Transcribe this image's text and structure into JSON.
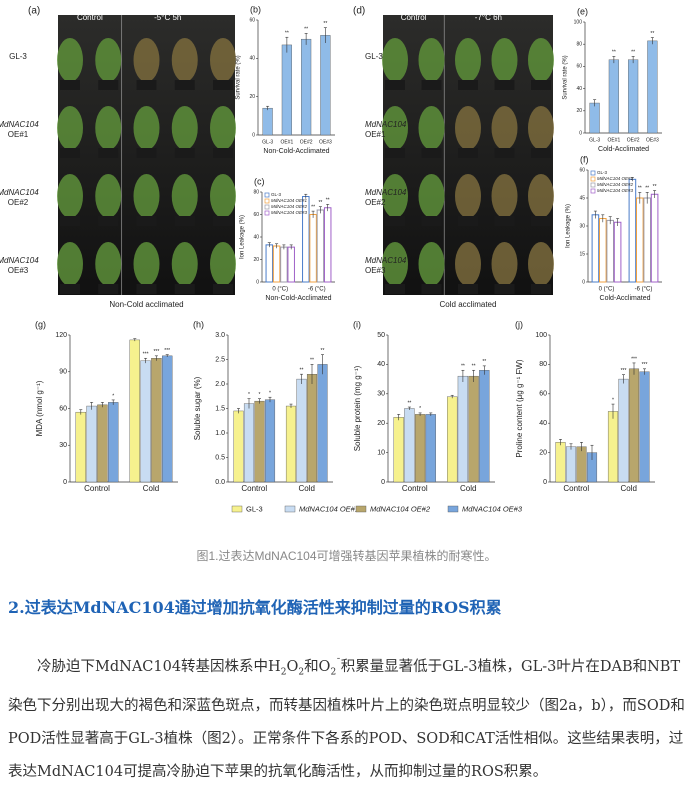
{
  "figure": {
    "photos": [
      {
        "letter": "(a)",
        "header": [
          "Control",
          "-5°C  5h"
        ],
        "rows": [
          [
            "GL-3"
          ],
          [
            "MdNAC104",
            "OE#1"
          ],
          [
            "MdNAC104",
            "OE#2"
          ],
          [
            "MdNAC104",
            "OE#3"
          ]
        ],
        "caption": "Non-Cold acclimated"
      },
      {
        "letter": "(d)",
        "header": [
          "Control",
          "-7°C  6h"
        ],
        "rows": [
          [
            "GL-3"
          ],
          [
            "MdNAC104",
            "OE#1"
          ],
          [
            "MdNAC104",
            "OE#2"
          ],
          [
            "MdNAC104",
            "OE#3"
          ]
        ],
        "caption": "Cold acclimated"
      }
    ],
    "caption": "图1.过表达MdNAC104可增强转基因苹果植株的耐寒性。"
  },
  "chart_data": [
    {
      "type": "bar",
      "letter": "(b)",
      "ylabel": "Survival rate (%)",
      "xlabel": "Non-Cold-Acclimated",
      "categories": [
        "GL-3",
        "OE#1",
        "OE#2",
        "OE#3"
      ],
      "values": [
        14,
        47,
        50,
        52
      ],
      "errors": [
        1,
        4,
        3,
        4
      ],
      "sig": [
        null,
        "**",
        "**",
        "**"
      ],
      "color": "#8fbbe8",
      "ylim": [
        0,
        60
      ],
      "yticks": [
        0,
        20,
        40,
        60
      ]
    },
    {
      "type": "bar",
      "letter": "(c)",
      "ylabel": "Ion Leakage (%)",
      "xlabel": "Non-Cold-Acclimated",
      "categories": [
        "0 (°C)",
        "-6 (°C)"
      ],
      "outline": true,
      "legend": true,
      "ylim": [
        0,
        80
      ],
      "yticks": [
        0,
        20,
        40,
        60,
        80
      ],
      "series": [
        {
          "name": "GL-3",
          "color": "#4a7cc9",
          "values": [
            33,
            76
          ],
          "errors": [
            2,
            2
          ],
          "sig": [
            null,
            null
          ]
        },
        {
          "name": "MdNAC104 OE#1",
          "color": "#f0a040",
          "values": [
            32,
            60
          ],
          "errors": [
            2,
            3
          ],
          "sig": [
            null,
            "**"
          ]
        },
        {
          "name": "MdNAC104 OE#2",
          "color": "#9a9aa8",
          "values": [
            31,
            64
          ],
          "errors": [
            2,
            3
          ],
          "sig": [
            null,
            "**"
          ]
        },
        {
          "name": "MdNAC104 OE#3",
          "color": "#a060c8",
          "values": [
            31,
            66
          ],
          "errors": [
            2,
            3
          ],
          "sig": [
            null,
            "**"
          ]
        }
      ]
    },
    {
      "type": "bar",
      "letter": "(e)",
      "ylabel": "Survival rate (%)",
      "xlabel": "Cold-Acclimated",
      "categories": [
        "GL-3",
        "OE#1",
        "OE#2",
        "OE#3"
      ],
      "values": [
        27,
        66,
        66,
        83
      ],
      "errors": [
        3,
        3,
        3,
        3
      ],
      "sig": [
        null,
        "**",
        "**",
        "**"
      ],
      "color": "#8fbbe8",
      "ylim": [
        0,
        100
      ],
      "yticks": [
        0,
        20,
        40,
        60,
        80,
        100
      ]
    },
    {
      "type": "bar",
      "letter": "(f)",
      "ylabel": "Ion Leakage (%)",
      "xlabel": "Cold-Acclimated",
      "categories": [
        "0 (°C)",
        "-6 (°C)"
      ],
      "outline": true,
      "legend": true,
      "ylim": [
        0,
        60
      ],
      "yticks": [
        0,
        15,
        30,
        45,
        60
      ],
      "series": [
        {
          "name": "GL-3",
          "color": "#4a7cc9",
          "values": [
            36,
            55
          ],
          "errors": [
            2,
            1
          ],
          "sig": [
            null,
            null
          ]
        },
        {
          "name": "MdNAC104 OE#1",
          "color": "#f0a040",
          "values": [
            34,
            45
          ],
          "errors": [
            2,
            3
          ],
          "sig": [
            null,
            "**"
          ]
        },
        {
          "name": "MdNAC104 OE#2",
          "color": "#9a9aa8",
          "values": [
            33,
            45
          ],
          "errors": [
            2,
            3
          ],
          "sig": [
            null,
            "**"
          ]
        },
        {
          "name": "MdNAC104 OE#3",
          "color": "#a060c8",
          "values": [
            32,
            47
          ],
          "errors": [
            2,
            2
          ],
          "sig": [
            null,
            "**"
          ]
        }
      ]
    },
    {
      "type": "bar",
      "letter": "(g)",
      "ylabel": "MDA (nmol g⁻¹)",
      "categories": [
        "Control",
        "Cold"
      ],
      "ylim": [
        0,
        120
      ],
      "yticks": [
        0,
        30,
        60,
        90,
        120
      ],
      "series": [
        {
          "name": "GL-3",
          "color": "#f6f18e",
          "values": [
            57,
            116
          ],
          "errors": [
            2,
            1
          ],
          "sig": [
            null,
            null
          ]
        },
        {
          "name": "MdNAC104 OE#1",
          "color": "#c8dcf2",
          "values": [
            62,
            99
          ],
          "errors": [
            3,
            2
          ],
          "sig": [
            null,
            "***"
          ]
        },
        {
          "name": "MdNAC104 OE#2",
          "color": "#b8a66c",
          "values": [
            63,
            101
          ],
          "errors": [
            2,
            2
          ],
          "sig": [
            null,
            "***"
          ]
        },
        {
          "name": "MdNAC104 OE#3",
          "color": "#78a5dc",
          "values": [
            65,
            103
          ],
          "errors": [
            2,
            1
          ],
          "sig": [
            "*",
            "***"
          ]
        }
      ]
    },
    {
      "type": "bar",
      "letter": "(h)",
      "ylabel": "Soluble sugar (%)",
      "categories": [
        "Control",
        "Cold"
      ],
      "ylim": [
        0,
        3
      ],
      "yticks": [
        {
          "value": 0,
          "label": "0.0"
        },
        0.5,
        {
          "value": 1,
          "label": "1.0"
        },
        1.5,
        {
          "value": 2,
          "label": "2.0"
        },
        2.5,
        {
          "value": 3,
          "label": "3.0"
        }
      ],
      "series": [
        {
          "name": "GL-3",
          "color": "#f6f18e",
          "values": [
            1.45,
            1.55
          ],
          "errors": [
            0.05,
            0.04
          ],
          "sig": [
            null,
            null
          ]
        },
        {
          "name": "MdNAC104 OE#1",
          "color": "#c8dcf2",
          "values": [
            1.6,
            2.1
          ],
          "errors": [
            0.1,
            0.1
          ],
          "sig": [
            "*",
            "**"
          ]
        },
        {
          "name": "MdNAC104 OE#2",
          "color": "#b8a66c",
          "values": [
            1.65,
            2.2
          ],
          "errors": [
            0.05,
            0.2
          ],
          "sig": [
            "*",
            "**"
          ]
        },
        {
          "name": "MdNAC104 OE#3",
          "color": "#78a5dc",
          "values": [
            1.68,
            2.4
          ],
          "errors": [
            0.05,
            0.2
          ],
          "sig": [
            "*",
            "**"
          ]
        }
      ]
    },
    {
      "type": "bar",
      "letter": "(i)",
      "ylabel": "Soluble protein (mg g⁻¹)",
      "categories": [
        "Control",
        "Cold"
      ],
      "ylim": [
        0,
        50
      ],
      "yticks": [
        0,
        10,
        20,
        30,
        40,
        50
      ],
      "series": [
        {
          "name": "GL-3",
          "color": "#f6f18e",
          "values": [
            22,
            29
          ],
          "errors": [
            1,
            0.5
          ],
          "sig": [
            null,
            null
          ]
        },
        {
          "name": "MdNAC104 OE#1",
          "color": "#c8dcf2",
          "values": [
            25,
            36
          ],
          "errors": [
            0.5,
            2
          ],
          "sig": [
            "**",
            "**"
          ]
        },
        {
          "name": "MdNAC104 OE#2",
          "color": "#b8a66c",
          "values": [
            23,
            36
          ],
          "errors": [
            0.5,
            2
          ],
          "sig": [
            "*",
            "**"
          ]
        },
        {
          "name": "MdNAC104 OE#3",
          "color": "#78a5dc",
          "values": [
            23,
            38
          ],
          "errors": [
            0.5,
            1.5
          ],
          "sig": [
            null,
            "**"
          ]
        }
      ]
    },
    {
      "type": "bar",
      "letter": "(j)",
      "ylabel": "Proline content (μg g⁻¹ FW)",
      "categories": [
        "Control",
        "Cold"
      ],
      "ylim": [
        0,
        100
      ],
      "yticks": [
        0,
        20,
        40,
        60,
        80,
        100
      ],
      "series": [
        {
          "name": "GL-3",
          "color": "#f6f18e",
          "values": [
            27,
            48
          ],
          "errors": [
            2,
            5
          ],
          "sig": [
            null,
            "*"
          ]
        },
        {
          "name": "MdNAC104 OE#1",
          "color": "#c8dcf2",
          "values": [
            24,
            70
          ],
          "errors": [
            2,
            3
          ],
          "sig": [
            null,
            "***"
          ]
        },
        {
          "name": "MdNAC104 OE#2",
          "color": "#b8a66c",
          "values": [
            24,
            77
          ],
          "errors": [
            3,
            4
          ],
          "sig": [
            null,
            "***"
          ]
        },
        {
          "name": "MdNAC104 OE#3",
          "color": "#78a5dc",
          "values": [
            20,
            75
          ],
          "errors": [
            5,
            2
          ],
          "sig": [
            null,
            "***"
          ]
        }
      ]
    }
  ],
  "section": {
    "heading": "2.过表达MdNAC104通过增加抗氧化酶活性来抑制过量的ROS积累",
    "paragraph": [
      {
        "text": "冷胁迫下MdNAC104转基因株系中H"
      },
      {
        "sub": "2"
      },
      {
        "text": "O"
      },
      {
        "sub": "2"
      },
      {
        "text": "和O"
      },
      {
        "sub": "2"
      },
      {
        "sup": "¯"
      },
      {
        "text": "积累量显著低于GL-3植株，GL-3叶片在DAB和NBT染色下分别出现大的褐色和深蓝色斑点，而转基因植株叶片上的染色斑点明显较少（图2a，b），而SOD和POD活性显著高于GL-3植株（图2）。正常条件下各系的POD、SOD和CAT活性相似。这些结果表明，过表达MdNAC104可提高冷胁迫下苹果的抗氧化酶活性，从而抑制过量的ROS积累。"
      }
    ]
  }
}
